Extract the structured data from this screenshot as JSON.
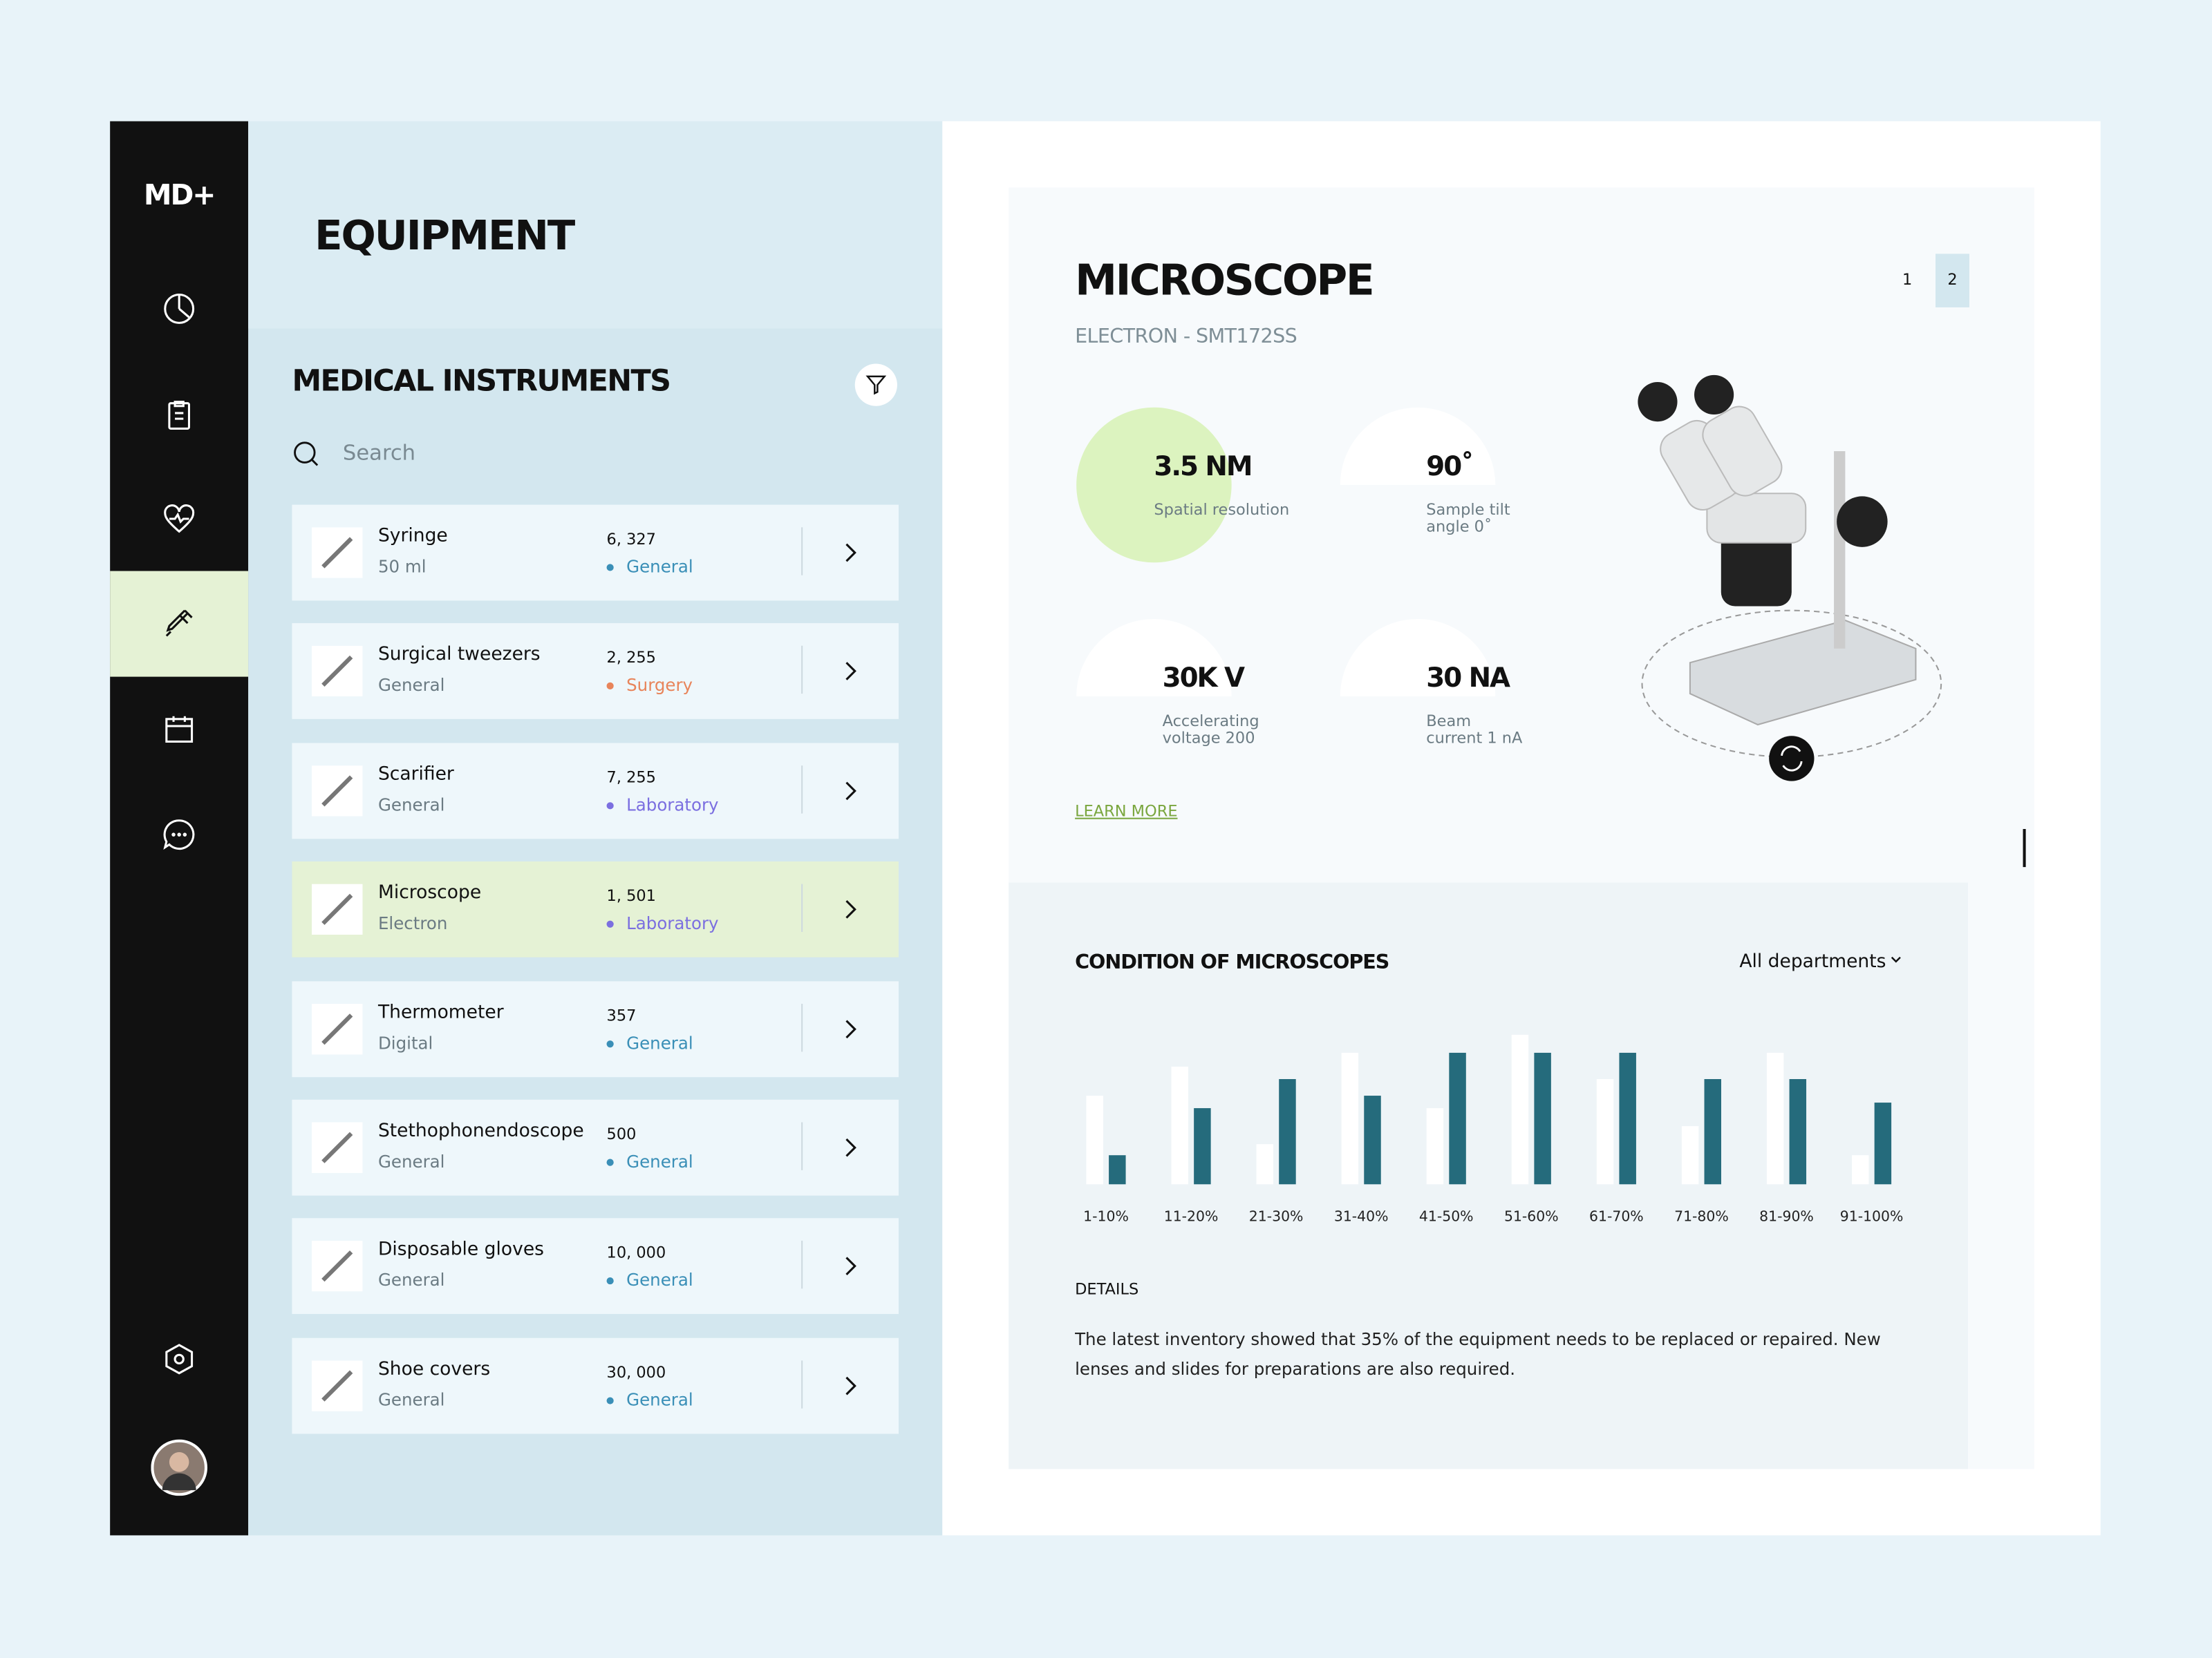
{
  "sidebar": {
    "logo": "MD+"
  },
  "header": {
    "title": "EQUIPMENT"
  },
  "list": {
    "title": "MEDICAL INSTRUMENTS",
    "search_placeholder": "Search",
    "active": 3,
    "items": [
      {
        "name": "Syringe",
        "sub": "50 ml",
        "count": "6, 327",
        "category": "General",
        "color": "#3a8fb7"
      },
      {
        "name": "Surgical tweezers",
        "sub": "General",
        "count": "2, 255",
        "category": "Surgery",
        "color": "#e8845a"
      },
      {
        "name": "Scarifier",
        "sub": "General",
        "count": "7, 255",
        "category": "Laboratory",
        "color": "#7b6fe0"
      },
      {
        "name": "Microscope",
        "sub": "Electron",
        "count": "1, 501",
        "category": "Laboratory",
        "color": "#7b6fe0"
      },
      {
        "name": "Thermometer",
        "sub": "Digital",
        "count": "357",
        "category": "General",
        "color": "#3a8fb7"
      },
      {
        "name": "Stethophonendoscope",
        "sub": "General",
        "count": "500",
        "category": "General",
        "color": "#3a8fb7"
      },
      {
        "name": "Disposable gloves",
        "sub": "General",
        "count": "10, 000",
        "category": "General",
        "color": "#3a8fb7"
      },
      {
        "name": "Shoe covers",
        "sub": "General",
        "count": "30, 000",
        "category": "General",
        "color": "#3a8fb7"
      }
    ]
  },
  "detail": {
    "title": "MICROSCOPE",
    "subtitle": "ELECTRON - SMT172SS",
    "pages": [
      "1",
      "2"
    ],
    "specs": [
      {
        "value": "3.5 NM",
        "label": "Spatial resolution"
      },
      {
        "value": "90˚",
        "label": "Sample tilt angle 0˚"
      },
      {
        "value": "30K V",
        "label": "Accelerating voltage 200"
      },
      {
        "value": "30 NA",
        "label": "Beam current 1 nA"
      }
    ],
    "link": "LEARN MORE"
  },
  "chart_data": {
    "type": "bar",
    "title": "CONDITION OF MICROSCOPES",
    "filter": "All departments",
    "categories": [
      "1-10%",
      "11-20%",
      "21-30%",
      "31-40%",
      "41-50%",
      "51-60%",
      "61-70%",
      "71-80%",
      "81-90%",
      "91-100%"
    ],
    "series": [
      {
        "color": "#ffffff",
        "values": [
          64,
          85,
          29,
          95,
          55,
          108,
          76,
          42,
          95,
          21
        ]
      },
      {
        "color": "#256b7c",
        "values": [
          21,
          55,
          76,
          64,
          95,
          95,
          95,
          76,
          76,
          59
        ]
      }
    ],
    "ylim": [
      0,
      110
    ]
  },
  "details": {
    "title": "DETAILS",
    "text": "The latest inventory showed that 35% of the equipment needs to be replaced or repaired. New lenses and slides for preparations are also required."
  }
}
